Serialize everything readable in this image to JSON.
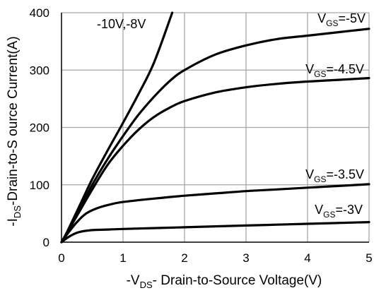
{
  "chart_data": {
    "type": "line",
    "xlabel": "-V",
    "xlabel_sub": "DS",
    "xlabel_rest": "- Drain-to-Source Voltage(V)",
    "ylabel": "-I",
    "ylabel_sub": "DS",
    "ylabel_rest": "-Drain-to-S ource Current(A)",
    "xlim": [
      0,
      5
    ],
    "ylim": [
      0,
      400
    ],
    "xticks": [
      "0",
      "1",
      "2",
      "3",
      "4",
      "5"
    ],
    "yticks": [
      "0",
      "100",
      "200",
      "300",
      "400"
    ],
    "grid": true,
    "series": [
      {
        "name": "-10V,-8V",
        "label_main": "-10V,-8V",
        "label_sub": "",
        "label_rest": "",
        "x": [
          0,
          0.1,
          0.3,
          0.5,
          0.75,
          1.0,
          1.25,
          1.5,
          1.8
        ],
        "y": [
          0,
          20,
          65,
          110,
          160,
          208,
          258,
          312,
          400
        ]
      },
      {
        "name": "VGS=-5V",
        "label_main": "V",
        "label_sub": "GS",
        "label_rest": "=-5V",
        "x": [
          0,
          0.1,
          0.3,
          0.5,
          0.75,
          1.0,
          1.25,
          1.5,
          1.75,
          2.0,
          2.5,
          3.0,
          3.5,
          4.0,
          4.5,
          5.0
        ],
        "y": [
          0,
          18,
          58,
          100,
          145,
          185,
          222,
          253,
          280,
          300,
          327,
          343,
          354,
          360,
          366,
          372
        ]
      },
      {
        "name": "VGS=-4.5V",
        "label_main": "V",
        "label_sub": "GS",
        "label_rest": "=-4.5V",
        "x": [
          0,
          0.1,
          0.3,
          0.5,
          0.75,
          1.0,
          1.25,
          1.5,
          1.75,
          2.0,
          2.5,
          3.0,
          3.5,
          4.0,
          4.5,
          5.0
        ],
        "y": [
          0,
          18,
          55,
          92,
          135,
          168,
          196,
          218,
          234,
          246,
          261,
          270,
          276,
          280,
          283,
          286
        ]
      },
      {
        "name": "VGS=-3.5V",
        "label_main": "V",
        "label_sub": "GS",
        "label_rest": "=-3.5V",
        "x": [
          0,
          0.1,
          0.25,
          0.4,
          0.6,
          0.8,
          1.0,
          1.5,
          2.0,
          2.5,
          3.0,
          3.5,
          4.0,
          4.5,
          5.0
        ],
        "y": [
          0,
          15,
          35,
          50,
          60,
          66,
          70,
          76,
          81,
          85,
          89,
          92,
          95,
          98,
          101
        ]
      },
      {
        "name": "VGS=-3V",
        "label_main": "V",
        "label_sub": "GS",
        "label_rest": "=-3V",
        "x": [
          0,
          0.1,
          0.2,
          0.3,
          0.5,
          0.75,
          1.0,
          2.0,
          3.0,
          4.0,
          5.0
        ],
        "y": [
          0,
          8,
          14,
          18,
          21,
          22,
          23,
          26,
          29,
          32,
          35
        ]
      }
    ],
    "colors": {
      "line": "#000000",
      "grid": "#a6a6a6",
      "axis": "#000000"
    }
  }
}
